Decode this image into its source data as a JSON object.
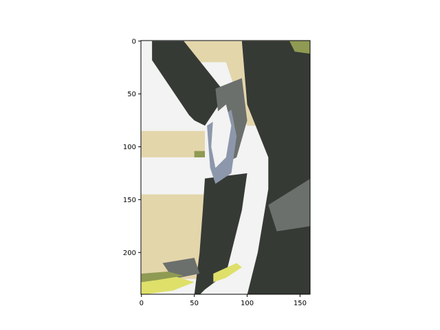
{
  "chart_data": {
    "type": "heatmap",
    "title": "",
    "xlabel": "",
    "ylabel": "",
    "image_size": {
      "cols": 160,
      "rows": 240
    },
    "xlim": [
      -0.5,
      159.5
    ],
    "ylim": [
      239.5,
      -0.5
    ],
    "x_ticks": [
      0,
      50,
      100,
      150
    ],
    "y_ticks": [
      0,
      50,
      100,
      150,
      200
    ],
    "palette": {
      "dark": "#363a35",
      "gray": "#6b706d",
      "cream": "#e4d6ab",
      "white": "#f2f3f2",
      "olive": "#8f9a52",
      "yellow": "#dfe06a",
      "blue_gray": "#8d97ab"
    },
    "regions": [
      {
        "name": "light-background",
        "color": "white",
        "points": [
          [
            0,
            8
          ],
          [
            60,
            80
          ],
          [
            60,
            240
          ],
          [
            0,
            240
          ]
        ]
      },
      {
        "name": "cream-top-strip",
        "color": "cream",
        "points": [
          [
            40,
            0
          ],
          [
            160,
            0
          ],
          [
            160,
            20
          ],
          [
            40,
            20
          ]
        ]
      },
      {
        "name": "cream-shoulder",
        "color": "cream",
        "points": [
          [
            80,
            20
          ],
          [
            160,
            20
          ],
          [
            160,
            80
          ],
          [
            100,
            80
          ]
        ]
      },
      {
        "name": "cream-left-band",
        "color": "cream",
        "points": [
          [
            0,
            85
          ],
          [
            60,
            85
          ],
          [
            60,
            110
          ],
          [
            0,
            110
          ]
        ]
      },
      {
        "name": "cream-left-lower",
        "color": "cream",
        "points": [
          [
            0,
            145
          ],
          [
            60,
            145
          ],
          [
            55,
            225
          ],
          [
            0,
            225
          ]
        ]
      },
      {
        "name": "dark-diagonal-band",
        "color": "dark",
        "points": [
          [
            10,
            0
          ],
          [
            40,
            0
          ],
          [
            80,
            50
          ],
          [
            60,
            80
          ],
          [
            50,
            75
          ],
          [
            45,
            70
          ],
          [
            10,
            18
          ]
        ]
      },
      {
        "name": "dark-right-mass",
        "color": "dark",
        "points": [
          [
            95,
            0
          ],
          [
            160,
            0
          ],
          [
            160,
            240
          ],
          [
            100,
            240
          ],
          [
            110,
            200
          ],
          [
            120,
            140
          ],
          [
            120,
            110
          ],
          [
            100,
            60
          ]
        ]
      },
      {
        "name": "dark-leg",
        "color": "dark",
        "points": [
          [
            60,
            130
          ],
          [
            100,
            125
          ],
          [
            95,
            160
          ],
          [
            80,
            220
          ],
          [
            60,
            235
          ],
          [
            55,
            240
          ],
          [
            50,
            240
          ],
          [
            55,
            200
          ],
          [
            58,
            160
          ]
        ]
      },
      {
        "name": "gray-shadow-a",
        "color": "gray",
        "points": [
          [
            120,
            155
          ],
          [
            160,
            130
          ],
          [
            160,
            175
          ],
          [
            128,
            180
          ]
        ]
      },
      {
        "name": "gray-shadow-b",
        "color": "gray",
        "points": [
          [
            70,
            45
          ],
          [
            95,
            35
          ],
          [
            100,
            75
          ],
          [
            90,
            110
          ],
          [
            80,
            115
          ],
          [
            75,
            90
          ]
        ]
      },
      {
        "name": "blue-gray-cloth",
        "color": "blue_gray",
        "points": [
          [
            62,
            80
          ],
          [
            85,
            65
          ],
          [
            90,
            90
          ],
          [
            85,
            125
          ],
          [
            70,
            135
          ],
          [
            65,
            120
          ]
        ]
      },
      {
        "name": "white-cloth",
        "color": "white",
        "points": [
          [
            68,
            70
          ],
          [
            80,
            60
          ],
          [
            85,
            80
          ],
          [
            80,
            110
          ],
          [
            70,
            120
          ],
          [
            66,
            100
          ]
        ]
      },
      {
        "name": "gray-foot-left",
        "color": "gray",
        "points": [
          [
            20,
            210
          ],
          [
            50,
            205
          ],
          [
            55,
            220
          ],
          [
            30,
            225
          ]
        ]
      },
      {
        "name": "yellow-foot-left",
        "color": "yellow",
        "points": [
          [
            0,
            225
          ],
          [
            30,
            222
          ],
          [
            50,
            228
          ],
          [
            30,
            236
          ],
          [
            0,
            240
          ]
        ]
      },
      {
        "name": "olive-foot-left",
        "color": "olive",
        "points": [
          [
            0,
            220
          ],
          [
            25,
            218
          ],
          [
            40,
            222
          ],
          [
            15,
            226
          ],
          [
            0,
            228
          ]
        ]
      },
      {
        "name": "yellow-foot-right",
        "color": "yellow",
        "points": [
          [
            68,
            220
          ],
          [
            90,
            210
          ],
          [
            95,
            214
          ],
          [
            80,
            224
          ],
          [
            68,
            228
          ]
        ]
      },
      {
        "name": "olive-leaf",
        "color": "olive",
        "points": [
          [
            50,
            104
          ],
          [
            60,
            104
          ],
          [
            60,
            110
          ],
          [
            50,
            110
          ]
        ]
      },
      {
        "name": "olive-corner",
        "color": "olive",
        "points": [
          [
            140,
            0
          ],
          [
            160,
            0
          ],
          [
            160,
            12
          ],
          [
            145,
            10
          ]
        ]
      }
    ]
  }
}
